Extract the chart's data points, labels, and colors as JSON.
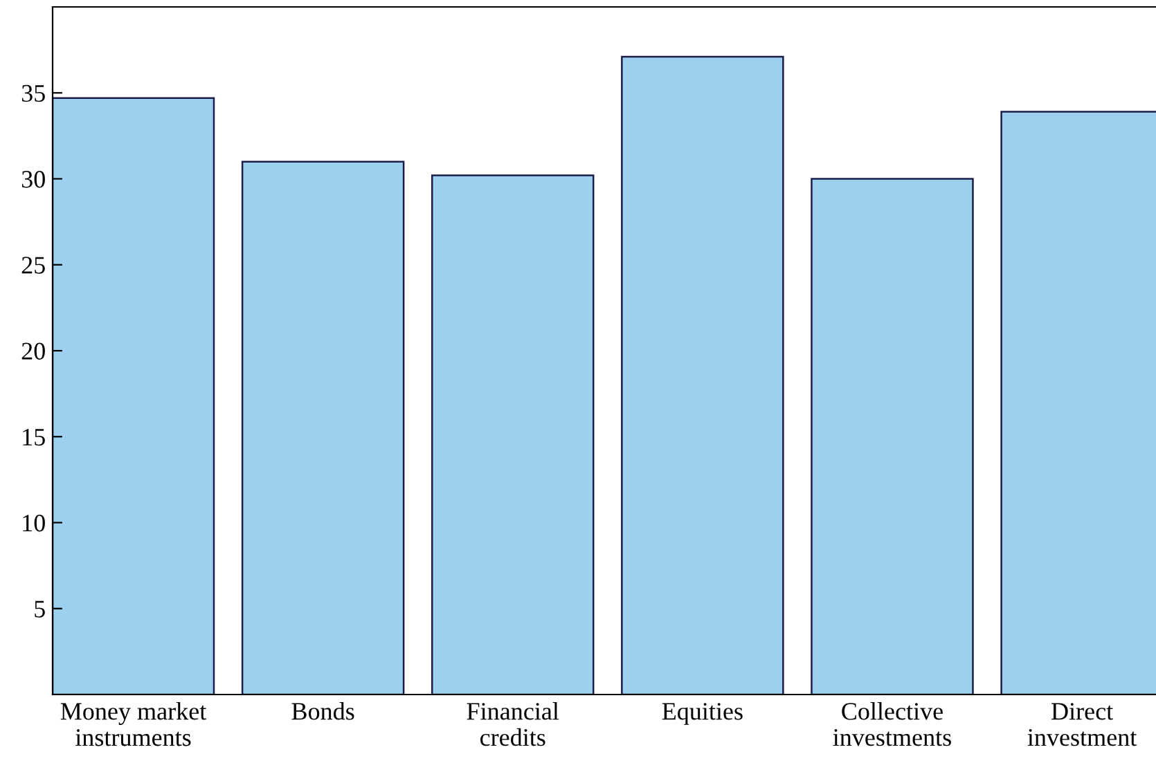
{
  "chart_data": {
    "type": "bar",
    "categories": [
      "Money market\ninstruments",
      "Bonds",
      "Financial\ncredits",
      "Equities",
      "Collective\ninvestments",
      "Direct\ninvestment"
    ],
    "values": [
      34.7,
      31.0,
      30.2,
      37.1,
      30.0,
      33.9
    ],
    "color": "#9dcfee",
    "ylim": [
      0,
      40
    ],
    "yticks": [
      5,
      10,
      15,
      20,
      25,
      30,
      35
    ],
    "grid": false
  }
}
